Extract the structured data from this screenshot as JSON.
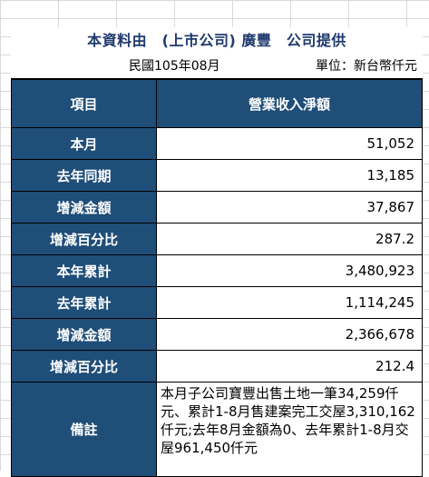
{
  "title": "本資料由　(上市公司) 廣豐　公司提供",
  "period": "民國105年08月",
  "unit": "單位：新台幣仟元",
  "table": {
    "header_item": "項目",
    "header_value": "營業收入淨額",
    "rows": [
      {
        "label": "本月",
        "value": "51,052"
      },
      {
        "label": "去年同期",
        "value": "13,185"
      },
      {
        "label": "增減金額",
        "value": "37,867"
      },
      {
        "label": "增減百分比",
        "value": "287.2"
      },
      {
        "label": "本年累計",
        "value": "3,480,923"
      },
      {
        "label": "去年累計",
        "value": "1,114,245"
      },
      {
        "label": "增減金額",
        "value": "2,366,678"
      },
      {
        "label": "增減百分比",
        "value": "212.4"
      }
    ],
    "note_label": "備註",
    "note_text": "本月子公司寶豐出售土地一筆34,259仟元、累計1-8月售建案完工交屋3,310,162仟元;去年8月金額為0、去年累計1-8月交屋961,450仟元"
  }
}
